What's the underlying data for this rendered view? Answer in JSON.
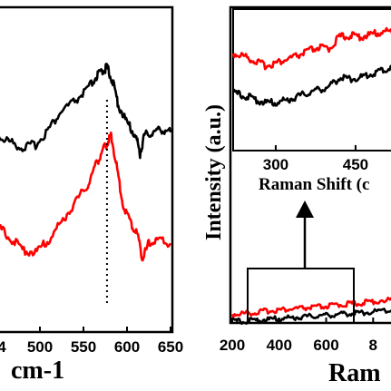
{
  "colors": {
    "series_black": "#000000",
    "series_red": "#ff0000",
    "axes": "#000000",
    "background": "#ffffff"
  },
  "chart_data": [
    {
      "type": "line",
      "panel": "left",
      "xlabel": "cm-1",
      "xlim": [
        450,
        650
      ],
      "x_ticks": [
        "500",
        "550",
        "600",
        "650"
      ],
      "x_tick_prefix_visible": "4",
      "annotation": "dotted vertical marker",
      "marker_x": 577,
      "series": [
        {
          "color": "#000000",
          "x": [
            450,
            465,
            480,
            495,
            510,
            525,
            540,
            555,
            565,
            572,
            577,
            583,
            590,
            600,
            610,
            615,
            620,
            630,
            640,
            650
          ],
          "y": [
            0.62,
            0.6,
            0.58,
            0.59,
            0.64,
            0.7,
            0.73,
            0.77,
            0.81,
            0.83,
            0.84,
            0.8,
            0.72,
            0.66,
            0.62,
            0.56,
            0.62,
            0.63,
            0.64,
            0.63
          ]
        },
        {
          "color": "#ff0000",
          "x": [
            450,
            465,
            480,
            495,
            510,
            525,
            540,
            555,
            565,
            572,
            578,
            582,
            588,
            595,
            605,
            612,
            618,
            625,
            635,
            650
          ],
          "y": [
            0.33,
            0.29,
            0.25,
            0.24,
            0.28,
            0.34,
            0.4,
            0.46,
            0.53,
            0.57,
            0.6,
            0.62,
            0.52,
            0.4,
            0.33,
            0.3,
            0.22,
            0.27,
            0.28,
            0.27
          ]
        }
      ]
    },
    {
      "type": "line",
      "panel": "right",
      "ylabel": "Intensity (a.u.)",
      "xlabel_visible": "Ram",
      "xlim": [
        200,
        880
      ],
      "x_ticks": [
        "200",
        "400",
        "600",
        "8"
      ],
      "series": [
        {
          "color": "#ff0000",
          "x": [
            200,
            250,
            300,
            350,
            400,
            450,
            500,
            550,
            600,
            650,
            700,
            750,
            800,
            880
          ],
          "y": [
            0.1,
            0.11,
            0.12,
            0.14,
            0.15,
            0.16,
            0.17,
            0.18,
            0.19,
            0.21,
            0.22,
            0.23,
            0.25,
            0.27
          ]
        },
        {
          "color": "#000000",
          "x": [
            200,
            250,
            300,
            350,
            400,
            450,
            500,
            550,
            600,
            650,
            700,
            750,
            800,
            880
          ],
          "y": [
            0.02,
            0.02,
            0.03,
            0.04,
            0.05,
            0.06,
            0.07,
            0.08,
            0.09,
            0.1,
            0.11,
            0.12,
            0.13,
            0.15
          ]
        }
      ],
      "zoom_box_xrange": [
        270,
        650
      ],
      "arrow": "up"
    },
    {
      "type": "line",
      "panel": "inset",
      "xlabel_visible": "Raman Shift (c",
      "x_ticks": [
        "300",
        "450"
      ],
      "xlim": [
        220,
        520
      ],
      "series": [
        {
          "color": "#ff0000",
          "x": [
            220,
            240,
            260,
            280,
            300,
            320,
            340,
            360,
            380,
            400,
            420,
            440,
            460,
            480,
            500,
            520
          ],
          "y": [
            0.78,
            0.76,
            0.72,
            0.68,
            0.7,
            0.73,
            0.76,
            0.8,
            0.83,
            0.82,
            0.92,
            0.93,
            0.92,
            0.94,
            0.96,
            0.97
          ]
        },
        {
          "color": "#000000",
          "x": [
            220,
            240,
            260,
            280,
            300,
            320,
            340,
            360,
            380,
            400,
            420,
            440,
            460,
            480,
            500,
            520
          ],
          "y": [
            0.45,
            0.43,
            0.4,
            0.37,
            0.37,
            0.39,
            0.42,
            0.45,
            0.48,
            0.5,
            0.58,
            0.57,
            0.58,
            0.61,
            0.64,
            0.66
          ]
        }
      ]
    }
  ]
}
